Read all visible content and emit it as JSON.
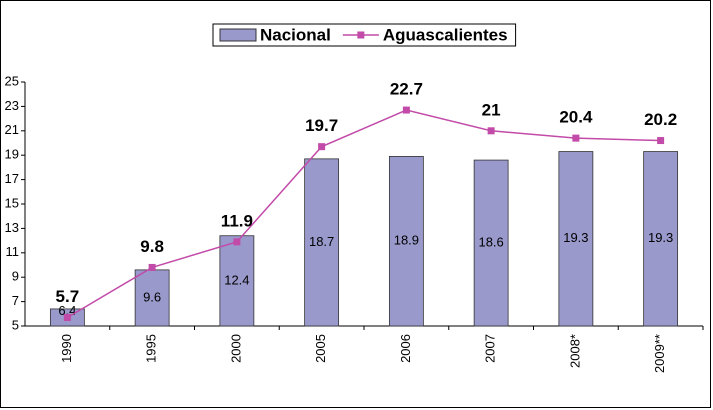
{
  "chart_data": {
    "type": "bar",
    "categories": [
      "1990",
      "1995",
      "2000",
      "2005",
      "2006",
      "2007",
      "2008*",
      "2009**"
    ],
    "series": [
      {
        "name": "Nacional",
        "type": "bar",
        "color": "#9999cc",
        "values": [
          6.4,
          9.6,
          12.4,
          18.7,
          18.9,
          18.6,
          19.3,
          19.3
        ]
      },
      {
        "name": "Aguascalientes",
        "type": "line",
        "color": "#c24aa8",
        "values": [
          5.7,
          9.8,
          11.9,
          19.7,
          22.7,
          21,
          20.4,
          20.2
        ]
      }
    ],
    "ylim": [
      5,
      25
    ],
    "yticks": [
      5,
      7,
      9,
      11,
      13,
      15,
      17,
      19,
      21,
      23,
      25
    ],
    "legend": "top"
  }
}
